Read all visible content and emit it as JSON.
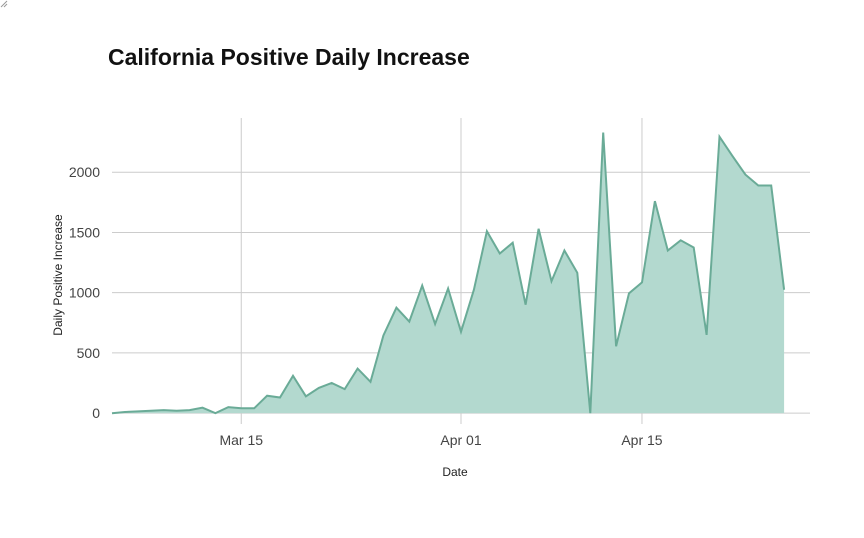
{
  "chart_data": {
    "type": "area",
    "title": "California Positive Daily Increase",
    "xlabel": "Date",
    "ylabel": "Daily Positive Increase",
    "x_ticks": [
      "Mar 15",
      "Apr 01",
      "Apr 15"
    ],
    "y_ticks": [
      0,
      500,
      1000,
      1500,
      2000
    ],
    "xlim": [
      "2020-03-05",
      "2020-04-28"
    ],
    "ylim": [
      -90,
      2450
    ],
    "grid": true,
    "colors": {
      "line": "#6aab97",
      "fill": "#b3d9cf",
      "grid": "#cccccc"
    },
    "x": [
      "2020-03-05",
      "2020-03-06",
      "2020-03-07",
      "2020-03-08",
      "2020-03-09",
      "2020-03-10",
      "2020-03-11",
      "2020-03-12",
      "2020-03-13",
      "2020-03-14",
      "2020-03-15",
      "2020-03-16",
      "2020-03-17",
      "2020-03-18",
      "2020-03-19",
      "2020-03-20",
      "2020-03-21",
      "2020-03-22",
      "2020-03-23",
      "2020-03-24",
      "2020-03-25",
      "2020-03-26",
      "2020-03-27",
      "2020-03-28",
      "2020-03-29",
      "2020-03-30",
      "2020-03-31",
      "2020-04-01",
      "2020-04-02",
      "2020-04-03",
      "2020-04-04",
      "2020-04-05",
      "2020-04-06",
      "2020-04-07",
      "2020-04-08",
      "2020-04-09",
      "2020-04-10",
      "2020-04-11",
      "2020-04-12",
      "2020-04-13",
      "2020-04-14",
      "2020-04-15",
      "2020-04-16",
      "2020-04-17",
      "2020-04-18",
      "2020-04-19",
      "2020-04-20",
      "2020-04-21",
      "2020-04-22",
      "2020-04-23",
      "2020-04-24",
      "2020-04-25",
      "2020-04-26"
    ],
    "values": [
      0,
      10,
      15,
      20,
      25,
      20,
      25,
      45,
      0,
      50,
      40,
      40,
      145,
      130,
      310,
      140,
      210,
      250,
      200,
      370,
      260,
      645,
      875,
      760,
      1060,
      740,
      1035,
      675,
      1025,
      1510,
      1325,
      1415,
      900,
      1530,
      1095,
      1350,
      1165,
      0,
      2330,
      555,
      995,
      1085,
      1760,
      1350,
      1435,
      1375,
      650,
      2295,
      2135,
      1980,
      1890,
      1890,
      1025
    ]
  }
}
